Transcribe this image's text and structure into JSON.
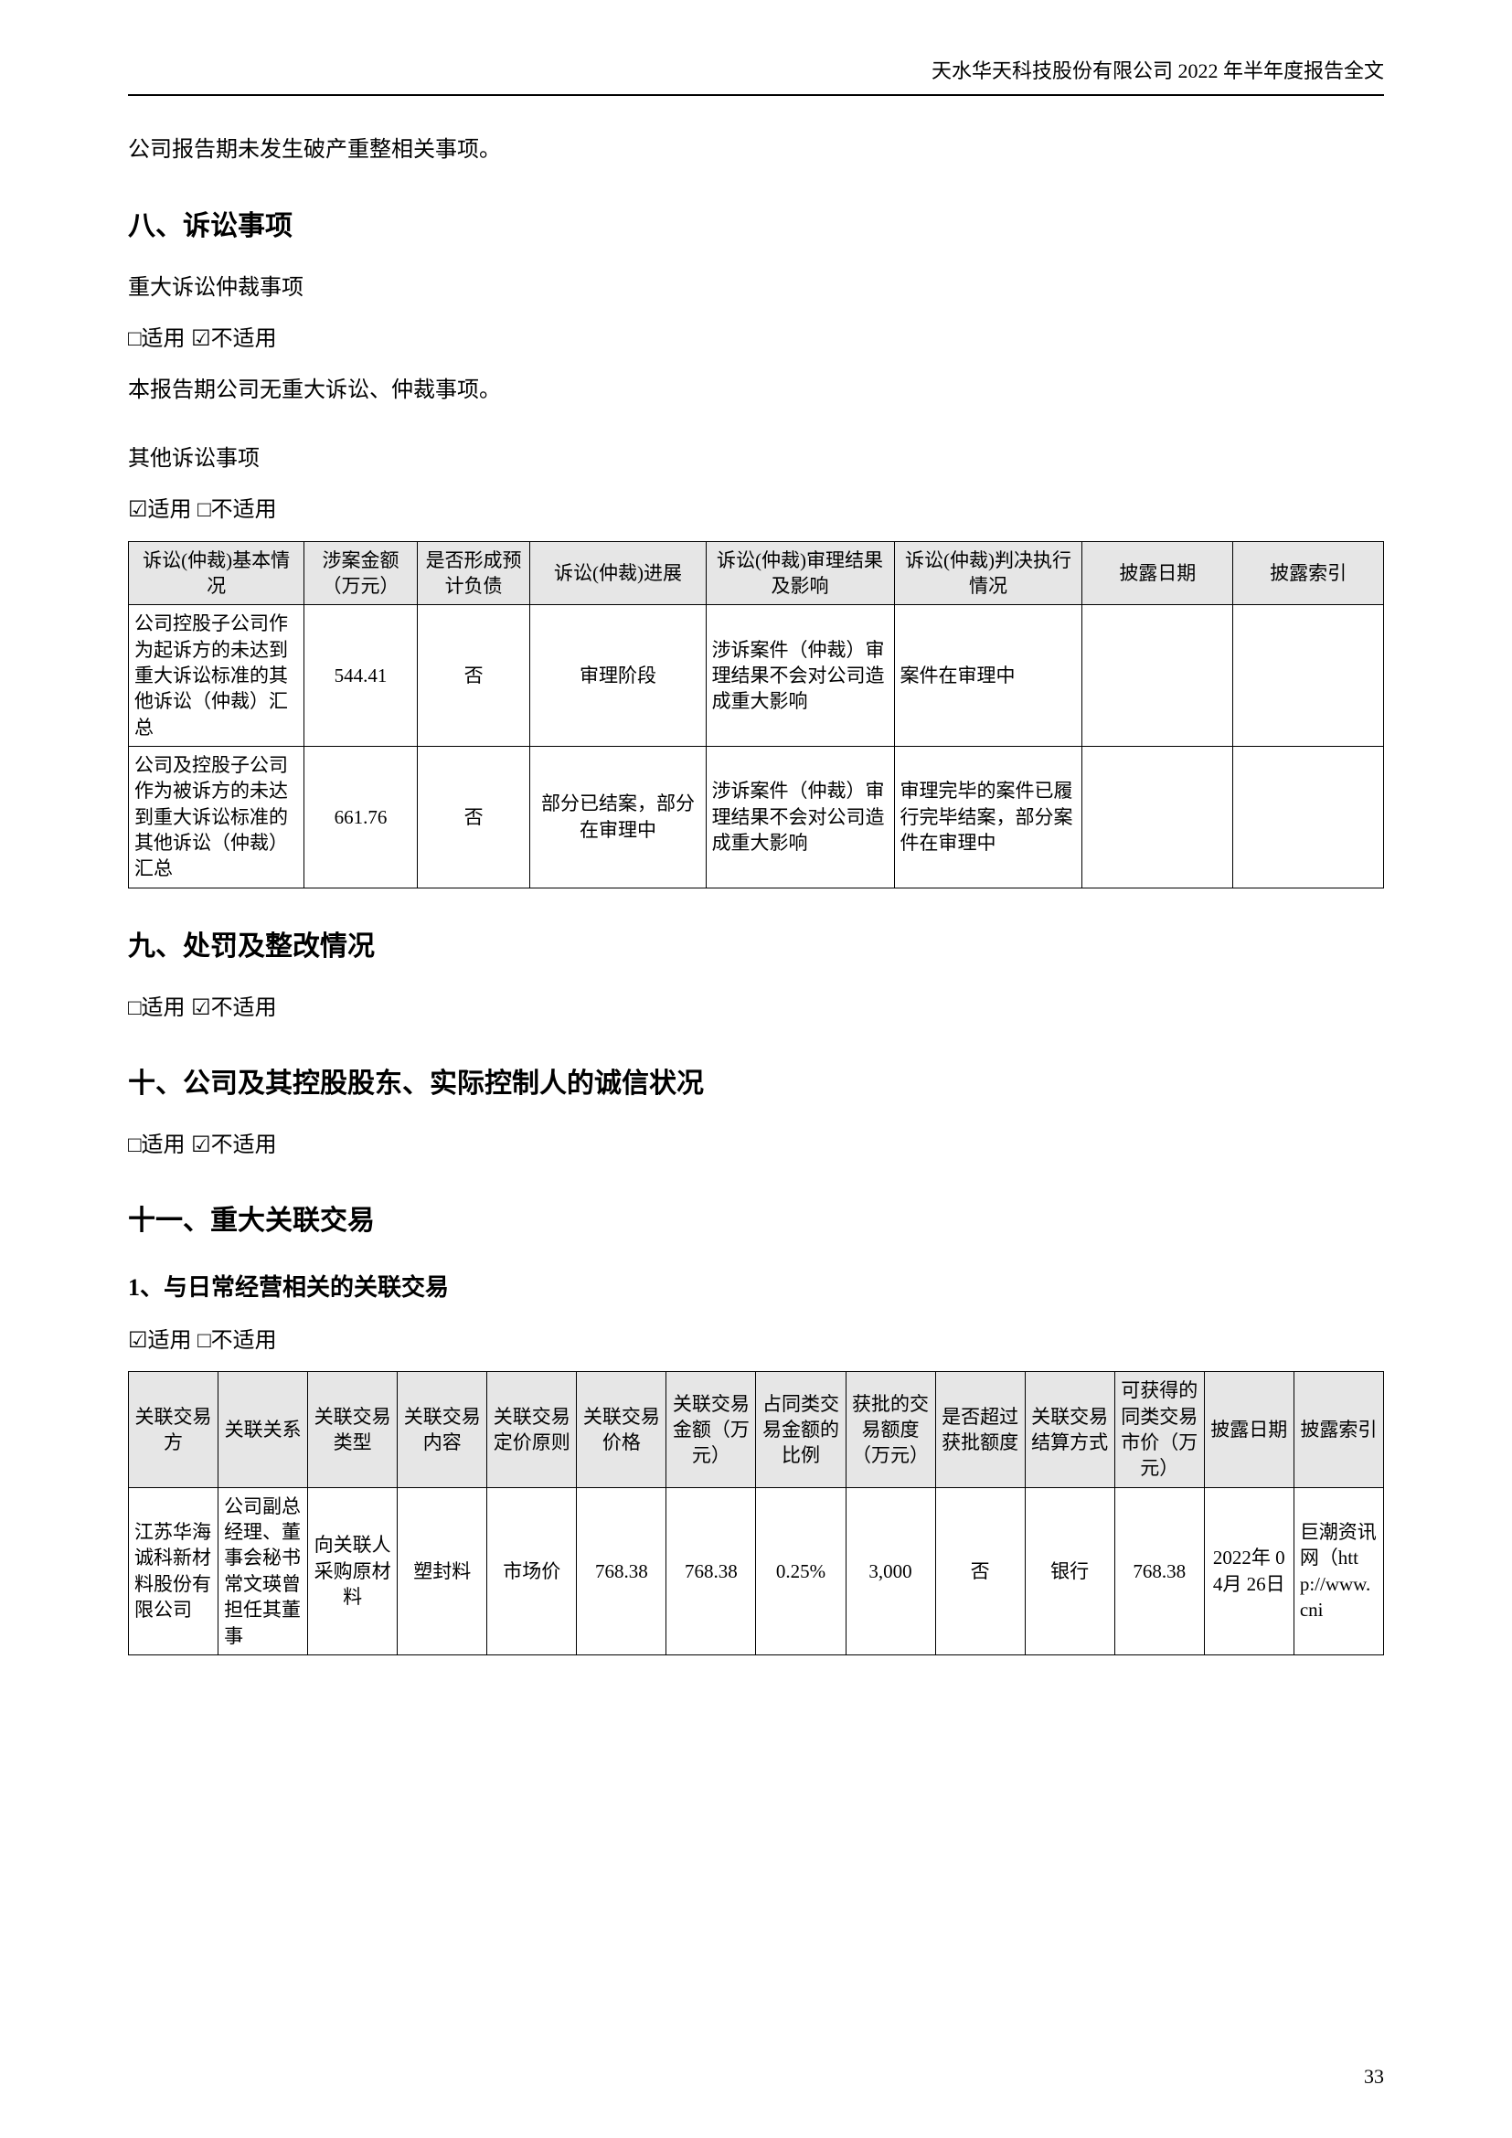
{
  "header": {
    "right_text": "天水华天科技股份有限公司 2022 年半年度报告全文"
  },
  "intro_text": "公司报告期未发生破产重整相关事项。",
  "section8": {
    "heading": "八、诉讼事项",
    "line1": "重大诉讼仲裁事项",
    "check1": "□适用 ☑不适用",
    "line2": "本报告期公司无重大诉讼、仲裁事项。",
    "line3": "其他诉讼事项",
    "check2": "☑适用 □不适用"
  },
  "litigation_table": {
    "headers": [
      "诉讼(仲裁)基本情况",
      "涉案金额（万元）",
      "是否形成预计负债",
      "诉讼(仲裁)进展",
      "诉讼(仲裁)审理结果及影响",
      "诉讼(仲裁)判决执行情况",
      "披露日期",
      "披露索引"
    ],
    "rows": [
      {
        "situation": "公司控股子公司作为起诉方的未达到重大诉讼标准的其他诉讼（仲裁）汇总",
        "amount": "544.41",
        "liability": "否",
        "progress": "审理阶段",
        "result": "涉诉案件（仲裁）审理结果不会对公司造成重大影响",
        "execution": "案件在审理中",
        "date": "",
        "index": ""
      },
      {
        "situation": "公司及控股子公司作为被诉方的未达到重大诉讼标准的其他诉讼（仲裁）汇总",
        "amount": "661.76",
        "liability": "否",
        "progress": "部分已结案，部分在审理中",
        "result": "涉诉案件（仲裁）审理结果不会对公司造成重大影响",
        "execution": "审理完毕的案件已履行完毕结案，部分案件在审理中",
        "date": "",
        "index": ""
      }
    ],
    "col_widths": [
      "14%",
      "9%",
      "9%",
      "14%",
      "15%",
      "15%",
      "12%",
      "12%"
    ]
  },
  "section9": {
    "heading": "九、处罚及整改情况",
    "check": "□适用 ☑不适用"
  },
  "section10": {
    "heading": "十、公司及其控股股东、实际控制人的诚信状况",
    "check": "□适用 ☑不适用"
  },
  "section11": {
    "heading": "十一、重大关联交易",
    "sub1": "1、与日常经营相关的关联交易",
    "check": "☑适用 □不适用"
  },
  "related_party_table": {
    "headers": [
      "关联交易方",
      "关联关系",
      "关联交易类型",
      "关联交易内容",
      "关联交易定价原则",
      "关联交易价格",
      "关联交易金额（万元）",
      "占同类交易金额的比例",
      "获批的交易额度（万元）",
      "是否超过获批额度",
      "关联交易结算方式",
      "可获得的同类交易市价（万元）",
      "披露日期",
      "披露索引"
    ],
    "rows": [
      {
        "party": "江苏华海诚科新材料股份有限公司",
        "relation": "公司副总经理、董事会秘书常文瑛曾担任其董事",
        "type": "向关联人采购原材料",
        "content": "塑封料",
        "principle": "市场价",
        "price": "768.38",
        "amount": "768.38",
        "ratio": "0.25%",
        "approved": "3,000",
        "exceed": "否",
        "settlement": "银行",
        "market_price": "768.38",
        "date": "2022年 04月 26日",
        "index": "巨潮资讯网（http://www.cni"
      }
    ],
    "col_widths": [
      "7.1%",
      "7.1%",
      "7.1%",
      "7.1%",
      "7.1%",
      "7.1%",
      "7.1%",
      "7.1%",
      "7.1%",
      "7.1%",
      "7.1%",
      "7.1%",
      "7.1%",
      "7.1%"
    ]
  },
  "page_number": "33"
}
